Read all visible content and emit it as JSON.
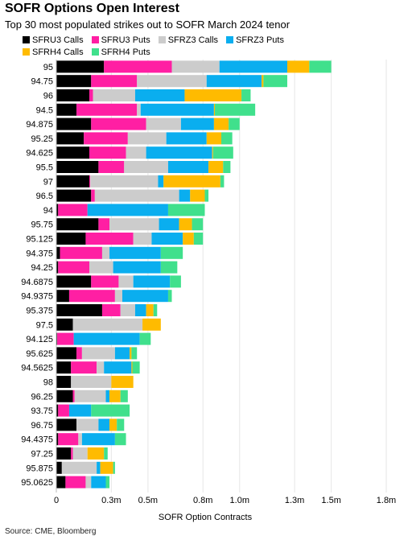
{
  "chart_data": {
    "type": "bar",
    "orientation": "horizontal",
    "stacked": true,
    "title": "SOFR Options Open Interest",
    "subtitle": "Top 30 most populated strikes out to SOFR March 2024 tenor",
    "xlabel": "SOFR Option Contracts",
    "ylabel": "",
    "xlim": [
      0,
      1800000
    ],
    "x_ticks": [
      0,
      300000,
      500000,
      800000,
      1000000,
      1300000,
      1500000,
      1800000
    ],
    "x_tick_labels": [
      "0",
      "0.3m",
      "0.5m",
      "0.8m",
      "1.0m",
      "1.3m",
      "1.5m",
      "1.8m"
    ],
    "grid": true,
    "legend_position": "top-left",
    "categories": [
      "95",
      "94.75",
      "96",
      "94.5",
      "94.875",
      "95.25",
      "94.625",
      "95.5",
      "97",
      "96.5",
      "94",
      "95.75",
      "95.125",
      "94.375",
      "94.25",
      "94.6875",
      "94.9375",
      "95.375",
      "97.5",
      "94.125",
      "95.625",
      "94.5625",
      "98",
      "96.25",
      "93.75",
      "96.75",
      "94.4375",
      "97.25",
      "95.875",
      "95.0625"
    ],
    "series": [
      {
        "name": "SFRU3 Calls",
        "color": "#000000",
        "values": [
          260000,
          190000,
          180000,
          110000,
          190000,
          150000,
          180000,
          230000,
          180000,
          190000,
          10000,
          230000,
          160000,
          20000,
          10000,
          190000,
          70000,
          250000,
          90000,
          5000,
          110000,
          80000,
          80000,
          90000,
          10000,
          110000,
          10000,
          80000,
          30000,
          50000
        ]
      },
      {
        "name": "SFRU3 Puts",
        "color": "#ff1fa3",
        "values": [
          370000,
          250000,
          20000,
          330000,
          300000,
          240000,
          200000,
          140000,
          5000,
          20000,
          160000,
          60000,
          260000,
          230000,
          170000,
          150000,
          250000,
          100000,
          0,
          90000,
          30000,
          140000,
          0,
          10000,
          60000,
          0,
          110000,
          10000,
          0,
          110000
        ]
      },
      {
        "name": "SFRZ3 Calls",
        "color": "#cccccc",
        "values": [
          260000,
          380000,
          230000,
          20000,
          190000,
          210000,
          110000,
          240000,
          370000,
          460000,
          0,
          270000,
          100000,
          40000,
          130000,
          80000,
          40000,
          80000,
          380000,
          0,
          180000,
          40000,
          220000,
          170000,
          0,
          120000,
          20000,
          80000,
          190000,
          30000
        ]
      },
      {
        "name": "SFRZ3 Puts",
        "color": "#0aaeef",
        "values": [
          370000,
          300000,
          270000,
          400000,
          180000,
          220000,
          360000,
          220000,
          30000,
          60000,
          440000,
          110000,
          170000,
          280000,
          260000,
          200000,
          250000,
          60000,
          0,
          360000,
          80000,
          150000,
          0,
          20000,
          120000,
          60000,
          180000,
          0,
          20000,
          80000
        ]
      },
      {
        "name": "SFRH4 Calls",
        "color": "#ffbb00",
        "values": [
          120000,
          10000,
          310000,
          5000,
          80000,
          80000,
          5000,
          80000,
          310000,
          80000,
          0,
          70000,
          60000,
          0,
          0,
          0,
          0,
          40000,
          100000,
          0,
          10000,
          5000,
          120000,
          60000,
          0,
          40000,
          0,
          90000,
          70000,
          0
        ]
      },
      {
        "name": "SFRH4 Puts",
        "color": "#40e08c",
        "values": [
          120000,
          130000,
          50000,
          220000,
          60000,
          60000,
          110000,
          40000,
          20000,
          20000,
          200000,
          60000,
          50000,
          120000,
          90000,
          60000,
          20000,
          20000,
          0,
          60000,
          30000,
          40000,
          0,
          40000,
          210000,
          40000,
          60000,
          20000,
          10000,
          20000
        ]
      }
    ]
  },
  "source": "Source: CME, Bloomberg"
}
